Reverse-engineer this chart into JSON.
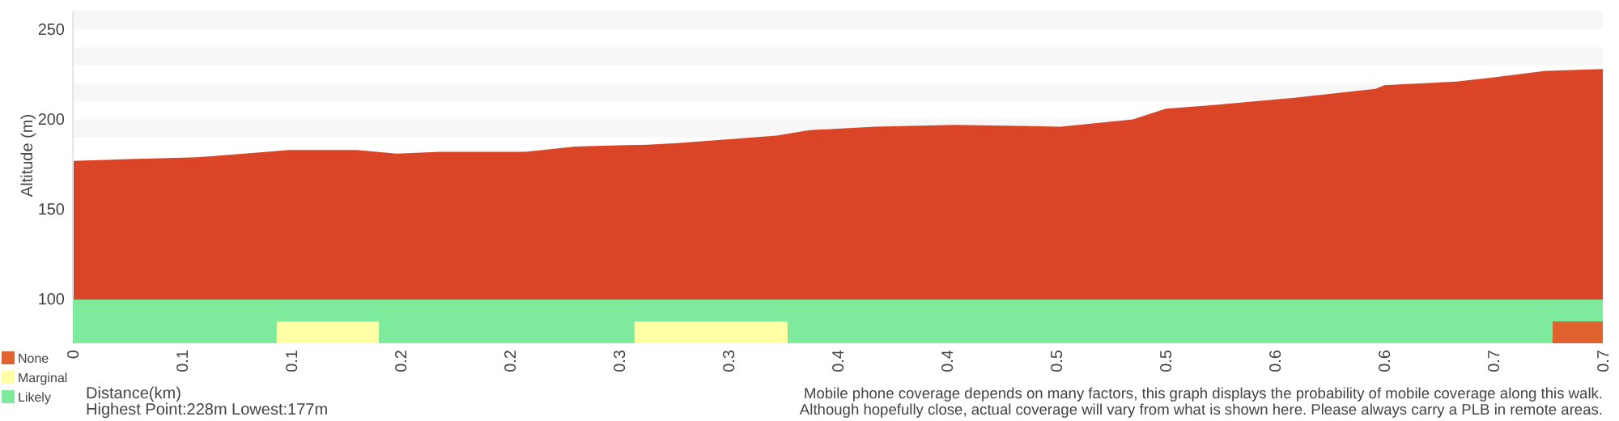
{
  "chart_data": [
    {
      "type": "area",
      "ylabel": "Altitude (m)",
      "xlim": [
        0,
        0.7
      ],
      "ylim": [
        100,
        260
      ],
      "yticks": [
        100,
        150,
        200,
        250
      ],
      "tick_labels": "y",
      "bands": [
        {
          "axis": "y",
          "from": 250,
          "to": 260,
          "color": "#f7f7f7"
        },
        {
          "axis": "y",
          "from": 230,
          "to": 240,
          "color": "#f7f7f7"
        },
        {
          "axis": "y",
          "from": 210,
          "to": 220,
          "color": "#f7f7f7"
        },
        {
          "axis": "y",
          "from": 190,
          "to": 200,
          "color": "#f7f7f7"
        }
      ],
      "series": [
        {
          "color": "#d94526",
          "x": [
            0,
            0.026,
            0.057,
            0.089,
            0.099,
            0.13,
            0.148,
            0.168,
            0.207,
            0.23,
            0.263,
            0.278,
            0.322,
            0.337,
            0.367,
            0.404,
            0.452,
            0.485,
            0.5,
            0.522,
            0.559,
            0.596,
            0.6,
            0.633,
            0.648,
            0.674,
            0.7
          ],
          "values": [
            177,
            178,
            179,
            182,
            183,
            183,
            181,
            182,
            182,
            185,
            186,
            187,
            191,
            194,
            196,
            197,
            196,
            200,
            206,
            208,
            212,
            217,
            219,
            221,
            223,
            227,
            228
          ]
        }
      ]
    },
    {
      "type": "bar",
      "orientation": "horizontal",
      "stacked": true,
      "categories": [
        null,
        null
      ],
      "xlim": [
        0,
        0.7
      ],
      "tick_labels": "x",
      "legend": "left",
      "xlabel": "Distance(km)",
      "xticks": [
        0,
        {
          "value": 0.05,
          "label": "0.1"
        },
        0.1,
        {
          "value": 0.15,
          "label": "0.2"
        },
        0.2,
        {
          "value": 0.25,
          "label": "0.3"
        },
        0.3,
        {
          "value": 0.35,
          "label": "0.4"
        },
        0.4,
        {
          "value": 0.45,
          "label": "0.5"
        },
        0.5,
        {
          "value": 0.55,
          "label": "0.6"
        },
        0.6,
        {
          "value": 0.65,
          "label": "0.7"
        },
        0.7
      ],
      "annotations": [
        "Highest Point:228m Lowest:177m",
        "Mobile phone coverage depends on many factors, this graph displays the probability of mobile coverage along this walk.",
        "Although hopefully close, actual coverage will vary from what is shown here. Please always carry a PLB in remote areas."
      ],
      "series": [
        {
          "name": "Likely",
          "color": "#7deb9b",
          "values": [
            0.7,
            0.0933
          ]
        },
        {
          "name": "Marginal",
          "color": "#ffffa6",
          "values": [
            0,
            0.0467
          ]
        },
        {
          "color": "#7deb9b",
          "values": [
            0,
            0.117
          ]
        },
        {
          "color": "#ffffa6",
          "values": [
            0,
            0.07
          ]
        },
        {
          "color": "#7deb9b",
          "values": [
            0,
            0.35
          ]
        },
        {
          "name": "None",
          "color": "#e0622e",
          "values": [
            0,
            0.023
          ]
        }
      ]
    }
  ]
}
